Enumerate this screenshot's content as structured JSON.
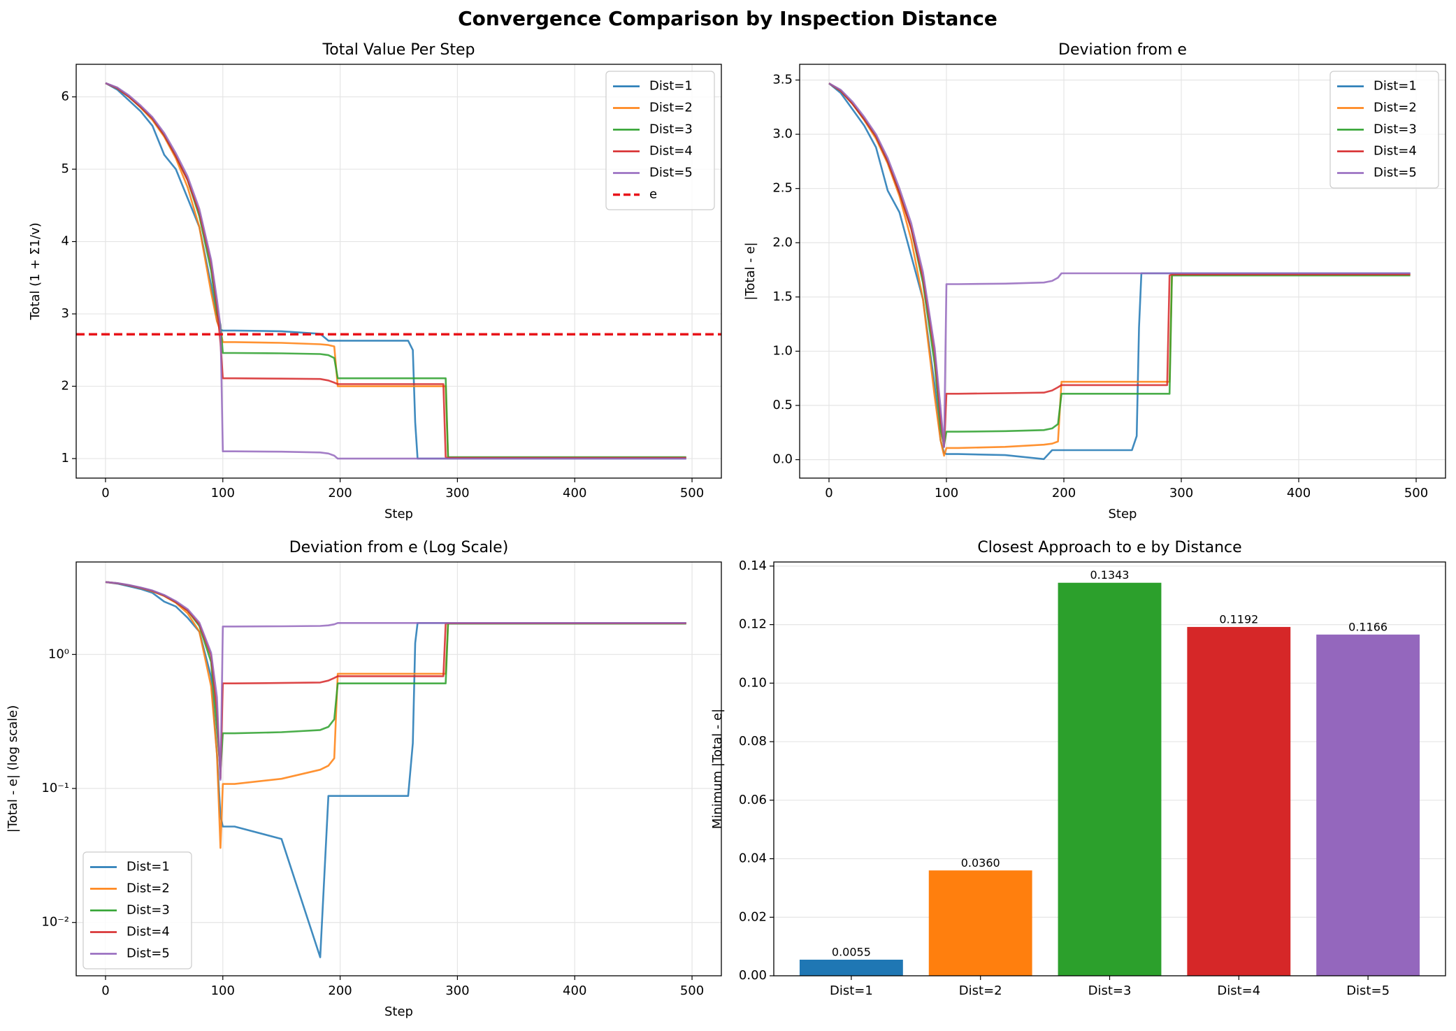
{
  "title": "Convergence Comparison by Inspection Distance",
  "chart_data": [
    {
      "type": "line",
      "title": "Total Value Per Step",
      "x_label": "Step",
      "y_label": "Total (1 + Σ1/v)",
      "x": [
        0,
        10,
        20,
        30,
        40,
        50,
        60,
        70,
        80,
        90,
        95,
        98,
        100,
        110,
        150,
        183,
        190,
        195,
        198,
        200,
        250,
        258,
        262,
        264,
        266,
        288,
        290,
        292,
        300,
        400,
        495
      ],
      "series": [
        {
          "name": "Dist=1",
          "color": "#1f77b4",
          "values": [
            6.19,
            6.1,
            5.95,
            5.8,
            5.6,
            5.2,
            5.0,
            4.6,
            4.2,
            3.4,
            2.9,
            2.78,
            2.77,
            2.77,
            2.76,
            2.7238,
            2.63,
            2.63,
            2.63,
            2.63,
            2.63,
            2.63,
            2.5,
            1.5,
            1.0,
            1.0,
            1.0,
            1.0,
            1.0,
            1.0,
            1.0
          ]
        },
        {
          "name": "Dist=2",
          "color": "#ff7f0e",
          "values": [
            6.19,
            6.12,
            6.0,
            5.85,
            5.68,
            5.45,
            5.15,
            4.75,
            4.2,
            3.3,
            2.9,
            2.754,
            2.61,
            2.61,
            2.6,
            2.58,
            2.57,
            2.55,
            2.0,
            2.0,
            2.0,
            2.0,
            2.0,
            2.0,
            2.0,
            2.0,
            2.0,
            1.01,
            1.01,
            1.01,
            1.01
          ]
        },
        {
          "name": "Dist=3",
          "color": "#2ca02c",
          "values": [
            6.19,
            6.12,
            6.0,
            5.86,
            5.7,
            5.47,
            5.18,
            4.85,
            4.35,
            3.6,
            3.0,
            2.852,
            2.46,
            2.46,
            2.455,
            2.445,
            2.43,
            2.39,
            2.11,
            2.11,
            2.11,
            2.11,
            2.11,
            2.11,
            2.11,
            2.11,
            2.11,
            1.02,
            1.02,
            1.02,
            1.02
          ]
        },
        {
          "name": "Dist=4",
          "color": "#d62728",
          "values": [
            6.19,
            6.12,
            6.0,
            5.86,
            5.7,
            5.47,
            5.18,
            4.85,
            4.4,
            3.7,
            3.1,
            2.599,
            2.11,
            2.11,
            2.105,
            2.1,
            2.08,
            2.05,
            2.03,
            2.03,
            2.03,
            2.03,
            2.03,
            2.03,
            2.03,
            2.03,
            1.02,
            1.01,
            1.01,
            1.01,
            1.01
          ]
        },
        {
          "name": "Dist=5",
          "color": "#9467bd",
          "values": [
            6.19,
            6.13,
            6.02,
            5.88,
            5.72,
            5.5,
            5.22,
            4.9,
            4.45,
            3.75,
            3.2,
            2.834,
            1.1,
            1.1,
            1.095,
            1.085,
            1.07,
            1.04,
            1.0,
            1.0,
            1.0,
            1.0,
            1.0,
            1.0,
            1.0,
            1.0,
            1.0,
            1.0,
            1.0,
            1.0,
            1.0
          ]
        }
      ],
      "hlines": [
        {
          "name": "e",
          "value": 2.718,
          "color": "#e8141a",
          "dashed": true
        }
      ],
      "xlim": [
        -25,
        525
      ],
      "xticks": [
        0,
        100,
        200,
        300,
        400,
        500
      ],
      "ylim": [
        0.73,
        6.45
      ],
      "yticks": [
        1,
        2,
        3,
        4,
        5,
        6
      ],
      "grid": true,
      "legend": "upper right"
    },
    {
      "type": "line",
      "title": "Deviation from e",
      "x_label": "Step",
      "y_label": "|Total - e|",
      "x": [
        0,
        10,
        20,
        30,
        40,
        50,
        60,
        70,
        80,
        90,
        95,
        98,
        100,
        110,
        150,
        183,
        190,
        195,
        198,
        200,
        250,
        258,
        262,
        264,
        266,
        288,
        290,
        292,
        300,
        400,
        495
      ],
      "series": [
        {
          "name": "Dist=1",
          "color": "#1f77b4",
          "values": [
            3.47,
            3.38,
            3.23,
            3.08,
            2.88,
            2.48,
            2.28,
            1.88,
            1.48,
            0.68,
            0.18,
            0.062,
            0.052,
            0.052,
            0.042,
            0.0055,
            0.088,
            0.088,
            0.088,
            0.088,
            0.088,
            0.088,
            0.218,
            1.218,
            1.718,
            1.718,
            1.718,
            1.718,
            1.718,
            1.718,
            1.718
          ]
        },
        {
          "name": "Dist=2",
          "color": "#ff7f0e",
          "values": [
            3.47,
            3.4,
            3.28,
            3.13,
            2.96,
            2.73,
            2.43,
            2.03,
            1.48,
            0.58,
            0.18,
            0.036,
            0.108,
            0.108,
            0.118,
            0.138,
            0.148,
            0.168,
            0.718,
            0.718,
            0.718,
            0.718,
            0.718,
            0.718,
            0.718,
            0.718,
            0.718,
            1.708,
            1.708,
            1.708,
            1.708
          ]
        },
        {
          "name": "Dist=3",
          "color": "#2ca02c",
          "values": [
            3.47,
            3.4,
            3.28,
            3.14,
            2.98,
            2.75,
            2.46,
            2.13,
            1.63,
            0.88,
            0.28,
            0.134,
            0.258,
            0.258,
            0.263,
            0.273,
            0.288,
            0.328,
            0.608,
            0.608,
            0.608,
            0.608,
            0.608,
            0.608,
            0.608,
            0.608,
            0.608,
            1.698,
            1.698,
            1.698,
            1.698
          ]
        },
        {
          "name": "Dist=4",
          "color": "#d62728",
          "values": [
            3.47,
            3.4,
            3.28,
            3.14,
            2.98,
            2.75,
            2.46,
            2.13,
            1.68,
            0.98,
            0.38,
            0.119,
            0.608,
            0.608,
            0.613,
            0.618,
            0.638,
            0.668,
            0.688,
            0.688,
            0.688,
            0.688,
            0.688,
            0.688,
            0.688,
            0.688,
            1.698,
            1.708,
            1.708,
            1.708,
            1.708
          ]
        },
        {
          "name": "Dist=5",
          "color": "#9467bd",
          "values": [
            3.47,
            3.41,
            3.3,
            3.16,
            3.0,
            2.78,
            2.5,
            2.18,
            1.73,
            1.03,
            0.48,
            0.116,
            1.618,
            1.618,
            1.623,
            1.633,
            1.648,
            1.678,
            1.718,
            1.718,
            1.718,
            1.718,
            1.718,
            1.718,
            1.718,
            1.718,
            1.718,
            1.718,
            1.718,
            1.718,
            1.718
          ]
        }
      ],
      "xlim": [
        -25,
        525
      ],
      "xticks": [
        0,
        100,
        200,
        300,
        400,
        500
      ],
      "ylim": [
        -0.17,
        3.645
      ],
      "yticks": [
        {
          "value": 0,
          "label": "0.0"
        },
        0.5,
        {
          "value": 1,
          "label": "1.0"
        },
        1.5,
        {
          "value": 2,
          "label": "2.0"
        },
        2.5,
        {
          "value": 3,
          "label": "3.0"
        },
        3.5
      ],
      "grid": true,
      "legend": "upper right"
    },
    {
      "type": "line",
      "title": "Deviation from e (Log Scale)",
      "x_label": "Step",
      "y_label": "|Total - e| (log scale)",
      "x": [
        0,
        10,
        20,
        30,
        40,
        50,
        60,
        70,
        80,
        90,
        95,
        98,
        100,
        110,
        150,
        183,
        190,
        195,
        198,
        200,
        250,
        258,
        262,
        264,
        266,
        288,
        290,
        292,
        300,
        400,
        495
      ],
      "series": [
        {
          "name": "Dist=1",
          "color": "#1f77b4",
          "values": [
            3.47,
            3.38,
            3.23,
            3.08,
            2.88,
            2.48,
            2.28,
            1.88,
            1.48,
            0.68,
            0.18,
            0.062,
            0.052,
            0.052,
            0.042,
            0.0055,
            0.088,
            0.088,
            0.088,
            0.088,
            0.088,
            0.088,
            0.218,
            1.218,
            1.718,
            1.718,
            1.718,
            1.718,
            1.718,
            1.718,
            1.718
          ]
        },
        {
          "name": "Dist=2",
          "color": "#ff7f0e",
          "values": [
            3.47,
            3.4,
            3.28,
            3.13,
            2.96,
            2.73,
            2.43,
            2.03,
            1.48,
            0.58,
            0.18,
            0.036,
            0.108,
            0.108,
            0.118,
            0.138,
            0.148,
            0.168,
            0.718,
            0.718,
            0.718,
            0.718,
            0.718,
            0.718,
            0.718,
            0.718,
            0.718,
            1.708,
            1.708,
            1.708,
            1.708
          ]
        },
        {
          "name": "Dist=3",
          "color": "#2ca02c",
          "values": [
            3.47,
            3.4,
            3.28,
            3.14,
            2.98,
            2.75,
            2.46,
            2.13,
            1.63,
            0.88,
            0.28,
            0.134,
            0.258,
            0.258,
            0.263,
            0.273,
            0.288,
            0.328,
            0.608,
            0.608,
            0.608,
            0.608,
            0.608,
            0.608,
            0.608,
            0.608,
            0.608,
            1.698,
            1.698,
            1.698,
            1.698
          ]
        },
        {
          "name": "Dist=4",
          "color": "#d62728",
          "values": [
            3.47,
            3.4,
            3.28,
            3.14,
            2.98,
            2.75,
            2.46,
            2.13,
            1.68,
            0.98,
            0.38,
            0.119,
            0.608,
            0.608,
            0.613,
            0.618,
            0.638,
            0.668,
            0.688,
            0.688,
            0.688,
            0.688,
            0.688,
            0.688,
            0.688,
            0.688,
            1.698,
            1.708,
            1.708,
            1.708,
            1.708
          ]
        },
        {
          "name": "Dist=5",
          "color": "#9467bd",
          "values": [
            3.47,
            3.41,
            3.3,
            3.16,
            3.0,
            2.78,
            2.5,
            2.18,
            1.73,
            1.03,
            0.48,
            0.116,
            1.618,
            1.618,
            1.623,
            1.633,
            1.648,
            1.678,
            1.718,
            1.718,
            1.718,
            1.718,
            1.718,
            1.718,
            1.718,
            1.718,
            1.718,
            1.718,
            1.718,
            1.718,
            1.718
          ]
        }
      ],
      "xlim": [
        -25,
        525
      ],
      "xticks": [
        0,
        100,
        200,
        300,
        400,
        500
      ],
      "ylim": [
        0.004,
        4.9
      ],
      "log_y": true,
      "yticks": [
        {
          "value": 0.01,
          "label": "10⁻²"
        },
        {
          "value": 0.1,
          "label": "10⁻¹"
        },
        {
          "value": 1,
          "label": "10⁰"
        }
      ],
      "grid": true,
      "legend": "lower left"
    },
    {
      "type": "bar",
      "title": "Closest Approach to e by Distance",
      "y_label": "Minimum |Total - e|",
      "categories": [
        "Dist=1",
        "Dist=2",
        "Dist=3",
        "Dist=4",
        "Dist=5"
      ],
      "values": [
        0.0055,
        0.036,
        0.1343,
        0.1192,
        0.1166
      ],
      "value_labels": [
        "0.0055",
        "0.0360",
        "0.1343",
        "0.1192",
        "0.1166"
      ],
      "colors": [
        "#1f77b4",
        "#ff7f0e",
        "#2ca02c",
        "#d62728",
        "#9467bd"
      ],
      "ylim": [
        0,
        0.1414
      ],
      "yticks": [
        {
          "value": 0,
          "label": "0.00"
        },
        0.02,
        0.04,
        0.06,
        0.08,
        {
          "value": 0.1,
          "label": "0.10"
        },
        0.12,
        0.14
      ],
      "grid": true
    }
  ]
}
